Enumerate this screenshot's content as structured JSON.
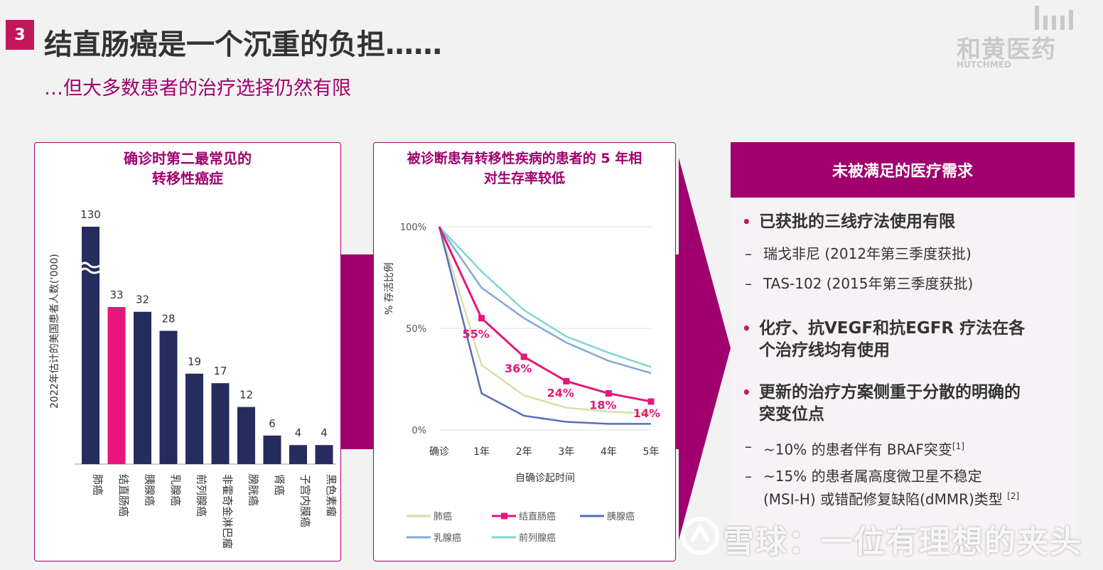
{
  "slide_number": "3",
  "title": "结直肠癌是一个沉重的负担……",
  "subtitle": "…但大多数患者的治疗选择仍然有限",
  "logo": {
    "cn": "和黄医药",
    "en": "HUTCHMED"
  },
  "colors": {
    "brand": "#a0006e",
    "highlight": "#e8157a",
    "bar": "#262c5e"
  },
  "left_panel": {
    "title_line1": "确诊时第二最常见的",
    "title_line2": "转移性癌症"
  },
  "middle_panel": {
    "title_line1": "被诊断患有转移性疾病的患者的 5 年相",
    "title_line2": "对生存率较低"
  },
  "right_panel": {
    "header": "未被满足的医疗需求",
    "bullet1": "已获批的三线疗法使用有限",
    "bullet1_sub1": "瑞戈非尼 (2012年第三季度获批)",
    "bullet1_sub2": "TAS-102 (2015年第三季度获批)",
    "bullet2_line1": "化疗、抗VEGF和抗EGFR 疗法在各",
    "bullet2_line2": "个治疗线均有使用",
    "bullet3_line1": "更新的治疗方案侧重于分散的明确的",
    "bullet3_line2": "突变位点",
    "bullet3_sub1": "~10% 的患者伴有 BRAF突变",
    "bullet3_sub1_ref": "[1]",
    "bullet3_sub2_line1": "~15% 的患者属高度微卫星不稳定",
    "bullet3_sub2_line2": "(MSI-H) 或错配修复缺陷(dMMR)类型",
    "bullet3_sub2_ref": "[2]"
  },
  "watermark": "雪球：一位有理想的夹头",
  "chart_data": [
    {
      "type": "bar",
      "ylabel": "2022年估计的美国患者人数(‘000)",
      "axis_break_on": "肺癌",
      "categories": [
        "肺癌",
        "结直肠癌",
        "胰腺癌",
        "乳腺癌",
        "前列腺癌",
        "非霍奇金淋巴瘤",
        "膀胱癌",
        "肾癌",
        "子宫内膜癌",
        "黑色素瘤"
      ],
      "values": [
        130,
        33,
        32,
        28,
        19,
        17,
        12,
        6,
        4,
        4
      ],
      "highlight_category": "结直肠癌"
    },
    {
      "type": "line",
      "xlabel": "自确诊起时间",
      "ylabel": "% 存活比例",
      "x": [
        "确诊",
        "1年",
        "2年",
        "3年",
        "4年",
        "5年"
      ],
      "ylim": [
        0,
        100
      ],
      "y_ticks": [
        "0%",
        "50%",
        "100%"
      ],
      "grid": true,
      "legend": "bottom",
      "series": [
        {
          "name": "肺癌",
          "color": "#d4e2a6",
          "values": [
            100,
            32,
            17,
            11,
            9,
            8
          ]
        },
        {
          "name": "结直肠癌",
          "color": "#e8157a",
          "values": [
            100,
            55,
            36,
            24,
            18,
            14
          ],
          "labels": [
            "",
            "55%",
            "36%",
            "24%",
            "18%",
            "14%"
          ]
        },
        {
          "name": "胰腺癌",
          "color": "#5b6bbf",
          "values": [
            100,
            18,
            7,
            4,
            3,
            3
          ]
        },
        {
          "name": "乳腺癌",
          "color": "#84a9d6",
          "values": [
            100,
            70,
            55,
            43,
            34,
            28
          ]
        },
        {
          "name": "前列腺癌",
          "color": "#7fd8cf",
          "values": [
            100,
            78,
            59,
            46,
            38,
            31
          ]
        }
      ]
    }
  ]
}
